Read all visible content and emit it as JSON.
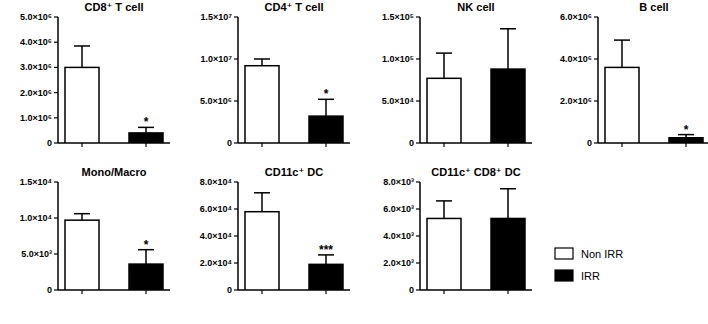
{
  "chart_data": [
    {
      "type": "bar",
      "title": "CD8⁺ T cell",
      "categories": [
        null
      ],
      "ylim": [
        0,
        5000000
      ],
      "yticks": [
        0,
        {
          "value": 1000000,
          "label": "1.0×10⁶"
        },
        {
          "value": 2000000,
          "label": "2.0×10⁶"
        },
        {
          "value": 3000000,
          "label": "3.0×10⁶"
        },
        {
          "value": 4000000,
          "label": "4.0×10⁶"
        },
        {
          "value": 5000000,
          "label": "5.0×10⁶"
        }
      ],
      "series": [
        {
          "color": "#ffffff",
          "values": [
            3000000
          ],
          "errors": [
            850000
          ]
        },
        {
          "color": "#000000",
          "values": [
            400000
          ],
          "errors": [
            220000
          ],
          "annotations": [
            "*"
          ]
        }
      ]
    },
    {
      "type": "bar",
      "title": "CD4⁺ T cell",
      "categories": [
        null
      ],
      "ylim": [
        0,
        15000000
      ],
      "yticks": [
        0,
        {
          "value": 5000000,
          "label": "5.0×10⁶"
        },
        {
          "value": 10000000,
          "label": "1.0×10⁷"
        },
        {
          "value": 15000000,
          "label": "1.5×10⁷"
        }
      ],
      "series": [
        {
          "color": "#ffffff",
          "values": [
            9200000
          ],
          "errors": [
            800000
          ]
        },
        {
          "color": "#000000",
          "values": [
            3200000
          ],
          "errors": [
            2000000
          ],
          "annotations": [
            "*"
          ]
        }
      ]
    },
    {
      "type": "bar",
      "title": "NK cell",
      "categories": [
        null
      ],
      "ylim": [
        0,
        150000
      ],
      "yticks": [
        0,
        {
          "value": 50000,
          "label": "5.0×10⁴"
        },
        {
          "value": 100000,
          "label": "1.0×10⁵"
        },
        {
          "value": 150000,
          "label": "1.5×10⁵"
        }
      ],
      "series": [
        {
          "color": "#ffffff",
          "values": [
            77000
          ],
          "errors": [
            30000
          ]
        },
        {
          "color": "#000000",
          "values": [
            88000
          ],
          "errors": [
            48000
          ]
        }
      ]
    },
    {
      "type": "bar",
      "title": "B cell",
      "categories": [
        null
      ],
      "ylim": [
        0,
        6000000
      ],
      "yticks": [
        0,
        {
          "value": 2000000,
          "label": "2.0×10⁶"
        },
        {
          "value": 4000000,
          "label": "4.0×10⁶"
        },
        {
          "value": 6000000,
          "label": "6.0×10⁶"
        }
      ],
      "series": [
        {
          "color": "#ffffff",
          "values": [
            3600000
          ],
          "errors": [
            1300000
          ]
        },
        {
          "color": "#000000",
          "values": [
            250000
          ],
          "errors": [
            150000
          ],
          "annotations": [
            "*"
          ]
        }
      ]
    },
    {
      "type": "bar",
      "title": "Mono/Macro",
      "categories": [
        null
      ],
      "ylim": [
        0,
        15000
      ],
      "yticks": [
        0,
        {
          "value": 5000,
          "label": "5.0×10³"
        },
        {
          "value": 10000,
          "label": "1.0×10⁴"
        },
        {
          "value": 15000,
          "label": "1.5×10⁴"
        }
      ],
      "series": [
        {
          "color": "#ffffff",
          "values": [
            9700
          ],
          "errors": [
            900
          ]
        },
        {
          "color": "#000000",
          "values": [
            3600
          ],
          "errors": [
            2000
          ],
          "annotations": [
            "*"
          ]
        }
      ]
    },
    {
      "type": "bar",
      "title": "CD11c⁺ DC",
      "categories": [
        null
      ],
      "ylim": [
        0,
        80000
      ],
      "yticks": [
        0,
        {
          "value": 20000,
          "label": "2.0×10⁴"
        },
        {
          "value": 40000,
          "label": "4.0×10⁴"
        },
        {
          "value": 60000,
          "label": "6.0×10⁴"
        },
        {
          "value": 80000,
          "label": "8.0×10⁴"
        }
      ],
      "series": [
        {
          "color": "#ffffff",
          "values": [
            58000
          ],
          "errors": [
            14000
          ]
        },
        {
          "color": "#000000",
          "values": [
            19000
          ],
          "errors": [
            7000
          ],
          "annotations": [
            "***"
          ]
        }
      ]
    },
    {
      "type": "bar",
      "title": "CD11c⁺ CD8⁺ DC",
      "categories": [
        null
      ],
      "ylim": [
        0,
        8000
      ],
      "yticks": [
        0,
        {
          "value": 2000,
          "label": "2.0×10³"
        },
        {
          "value": 4000,
          "label": "4.0×10³"
        },
        {
          "value": 6000,
          "label": "6.0×10³"
        },
        {
          "value": 8000,
          "label": "8.0×10³"
        }
      ],
      "legend": "right",
      "series": [
        {
          "name": "Non IRR",
          "color": "#ffffff",
          "values": [
            5300
          ],
          "errors": [
            1300
          ]
        },
        {
          "name": "IRR",
          "color": "#000000",
          "values": [
            5300
          ],
          "errors": [
            2200
          ]
        }
      ]
    }
  ]
}
